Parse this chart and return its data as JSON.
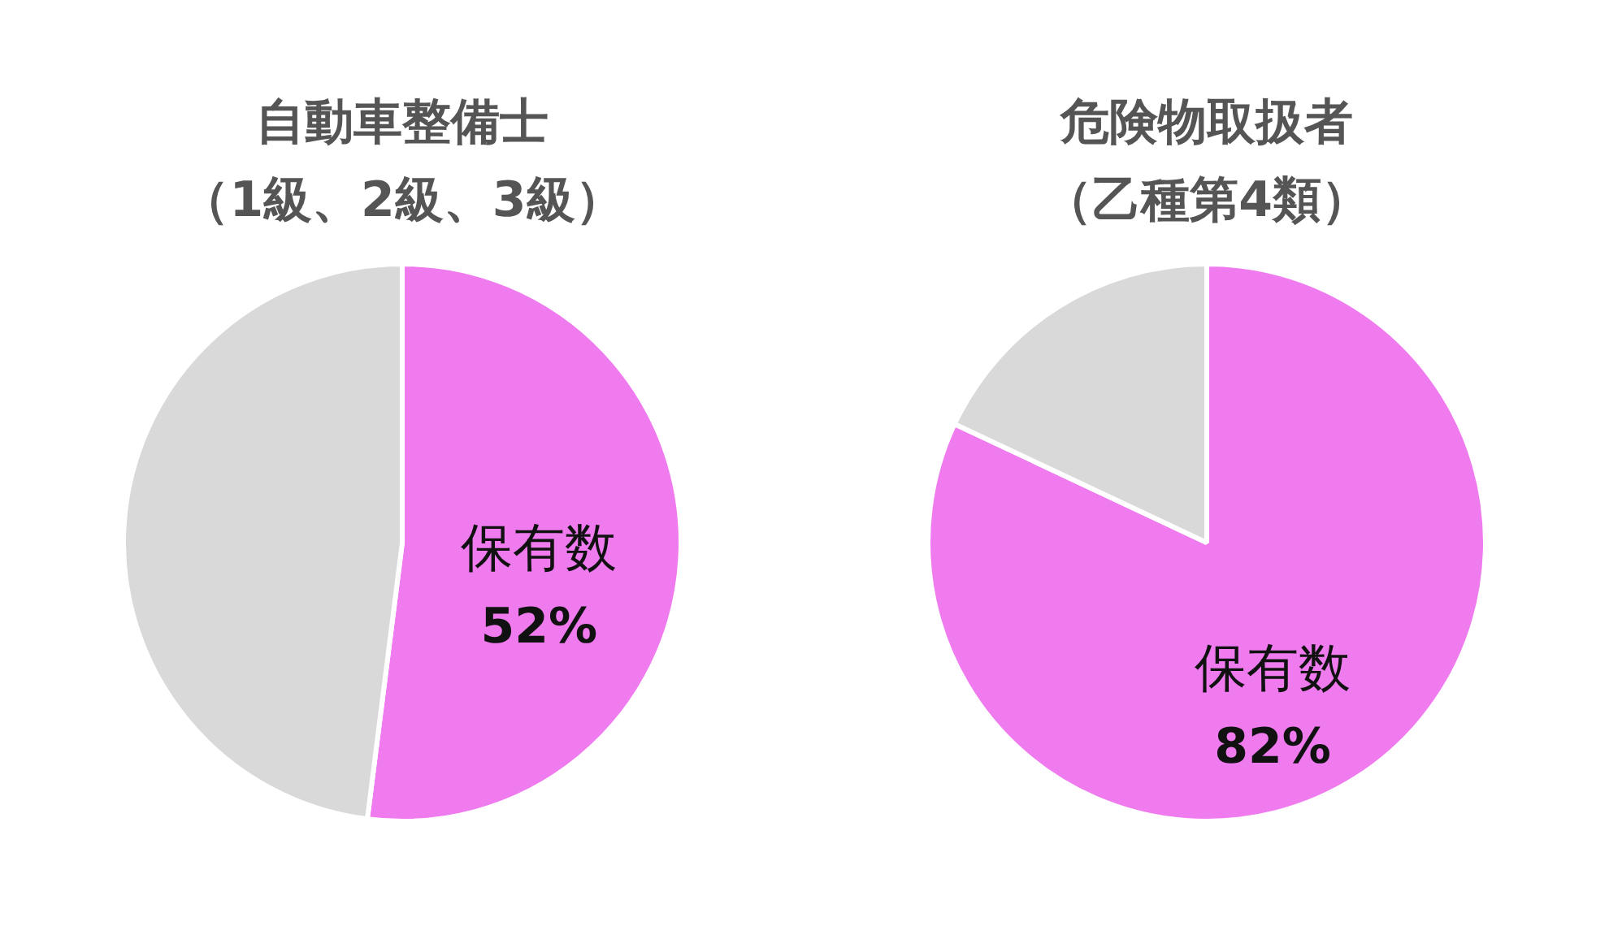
{
  "chart_data": [
    {
      "type": "pie",
      "title": "自動車整備士",
      "subtitle": "（1級、2級、3級）",
      "categories": [
        "保有数",
        null
      ],
      "values": [
        52,
        48
      ],
      "colors": [
        "#ef7bef",
        "#d9d9d9"
      ],
      "value_labels": [
        "52%",
        null
      ]
    },
    {
      "type": "pie",
      "title": "危険物取扱者",
      "subtitle": "（乙種第4類）",
      "categories": [
        "保有数",
        null
      ],
      "values": [
        82,
        18
      ],
      "colors": [
        "#ef7bef",
        "#d9d9d9"
      ],
      "value_labels": [
        "82%",
        null
      ]
    }
  ]
}
